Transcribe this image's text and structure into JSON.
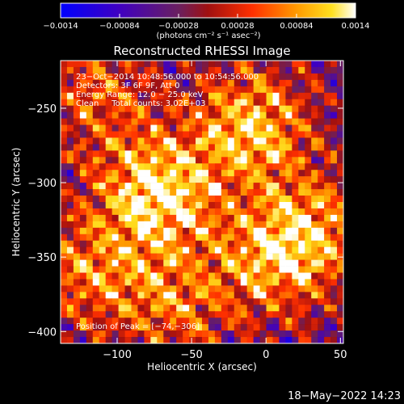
{
  "chart_data": {
    "type": "heatmap",
    "title": "Reconstructed RHESSI Image",
    "xlabel": "Heliocentric X (arcsec)",
    "ylabel": "Heliocentric Y (arcsec)",
    "xlim": [
      -138,
      52
    ],
    "ylim": [
      -408,
      -218
    ],
    "x_ticks": [
      -100,
      -50,
      0,
      50
    ],
    "x_tick_labels": [
      "−100",
      "−50",
      "0",
      "50"
    ],
    "y_ticks": [
      -250,
      -300,
      -350,
      -400
    ],
    "y_tick_labels": [
      "−250",
      "−300",
      "−350",
      "−400"
    ],
    "colorbar": {
      "min": -0.0014,
      "max": 0.0014,
      "ticks": [
        -0.0014,
        -0.00084,
        -0.00028,
        0.00028,
        0.00084,
        0.0014
      ],
      "tick_labels": [
        "−0.0014",
        "−0.00084",
        "−0.00028",
        "0.00028",
        "0.00084",
        "0.0014"
      ],
      "unit_label": "(photons cm⁻² s⁻¹ asec⁻²)"
    },
    "annotations": [
      "23−Oct−2014 10:48:56.000 to 10:54:56.000",
      "Detectors: 3F 6F 9F, Att 0",
      "Energy Range: 12.0 − 25.0 keV",
      "Clean     Total counts: 3.02E+03"
    ],
    "peak_label": "Position of Peak = [−74,−306]",
    "sources": [
      {
        "x": -74,
        "y": -306,
        "amp": 1.0
      },
      {
        "x": -10,
        "y": -262,
        "amp": 0.85
      },
      {
        "x": 5,
        "y": -350,
        "amp": 0.7
      },
      {
        "x": 35,
        "y": -330,
        "amp": 0.55
      },
      {
        "x": -120,
        "y": -360,
        "amp": 0.6
      },
      {
        "x": -115,
        "y": -240,
        "amp": 0.5
      },
      {
        "x": -60,
        "y": -380,
        "amp": 0.55
      }
    ],
    "grid": false
  },
  "footer_timestamp": "18−May−2022 14:23"
}
